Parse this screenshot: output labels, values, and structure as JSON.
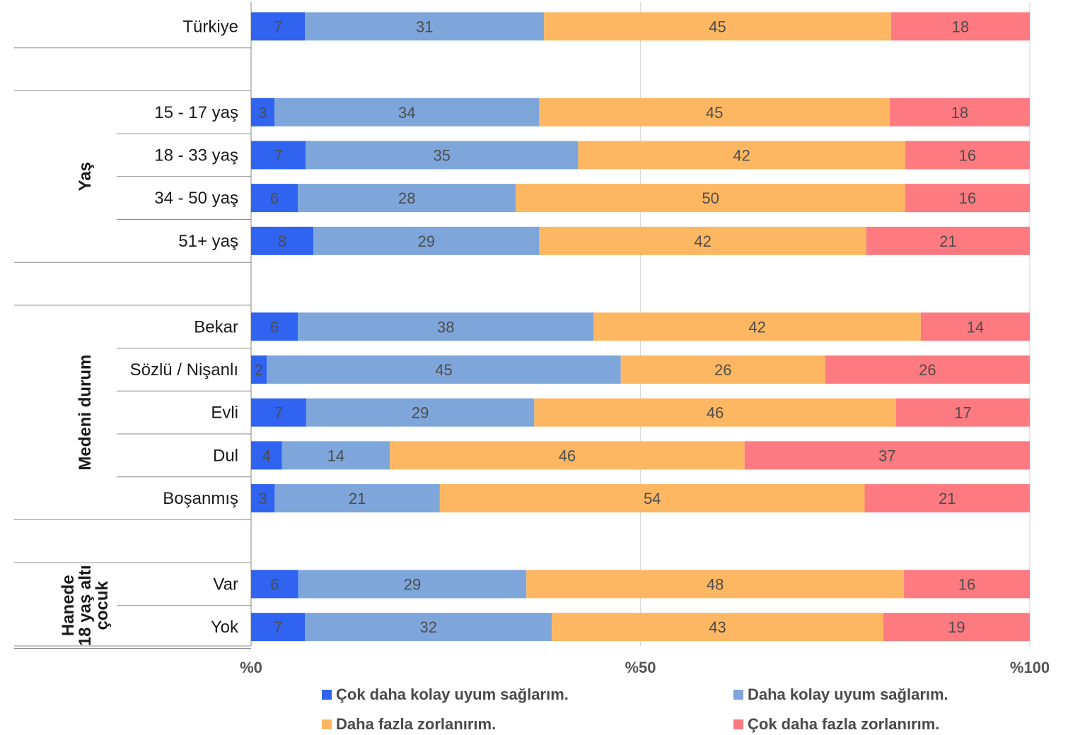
{
  "chart_data": {
    "type": "bar",
    "orientation": "horizontal",
    "stacked": true,
    "title": "",
    "xlabel": "",
    "ylabel": "",
    "xlim": [
      0,
      100
    ],
    "x_ticks": [
      "%0",
      "%50",
      "%100"
    ],
    "grid": true,
    "legend_position": "bottom",
    "categories": [
      "Türkiye",
      "15 - 17 yaş",
      "18 - 33 yaş",
      "34 - 50 yaş",
      "51+ yaş",
      "Bekar",
      "Sözlü / Nişanlı",
      "Evli",
      "Dul",
      "Boşanmış",
      "Var",
      "Yok"
    ],
    "groups": [
      {
        "label": "",
        "members": [
          "Türkiye"
        ]
      },
      {
        "label": "Yaş",
        "members": [
          "15 - 17 yaş",
          "18 - 33 yaş",
          "34 - 50 yaş",
          "51+ yaş"
        ]
      },
      {
        "label": "Medeni durum",
        "members": [
          "Bekar",
          "Sözlü / Nişanlı",
          "Evli",
          "Dul",
          "Boşanmış"
        ]
      },
      {
        "label": "Hanede 18 yaş altı çocuk",
        "label_lines": [
          "Hanede",
          "18 yaş altı",
          "çocuk"
        ],
        "members": [
          "Var",
          "Yok"
        ]
      }
    ],
    "series": [
      {
        "name": "Çok daha kolay uyum sağlarım.",
        "color": "#2f63f0",
        "values": [
          7,
          3,
          7,
          6,
          8,
          6,
          2,
          7,
          4,
          3,
          6,
          7
        ]
      },
      {
        "name": "Daha kolay uyum sağlarım.",
        "color": "#7ea6da",
        "values": [
          31,
          34,
          35,
          28,
          29,
          38,
          45,
          29,
          14,
          21,
          29,
          32
        ]
      },
      {
        "name": "Daha fazla zorlanırım.",
        "color": "#fdb762",
        "values": [
          45,
          45,
          42,
          50,
          42,
          42,
          26,
          46,
          46,
          54,
          48,
          43
        ]
      },
      {
        "name": "Çok daha fazla zorlanırım.",
        "color": "#fd7a81",
        "values": [
          18,
          18,
          16,
          16,
          21,
          14,
          26,
          17,
          37,
          21,
          16,
          19
        ]
      }
    ]
  }
}
